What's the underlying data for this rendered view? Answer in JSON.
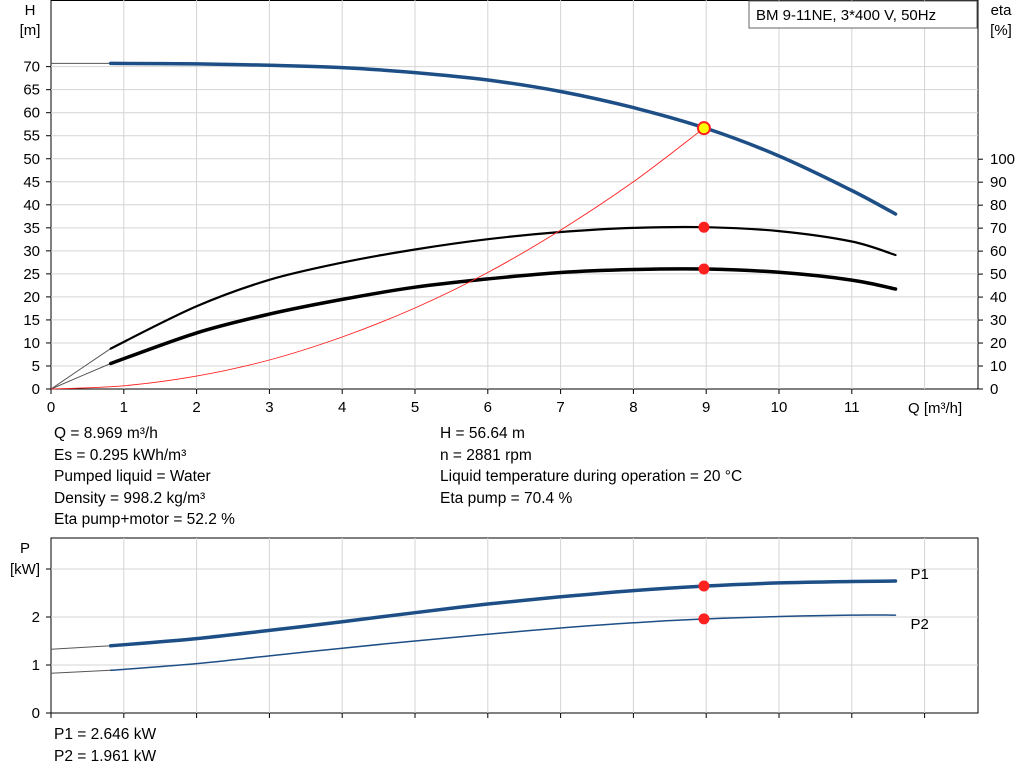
{
  "chart_data": [
    {
      "type": "line",
      "title": "BM 9-11NE, 3*400 V, 50Hz",
      "xlabel": "Q [m³/h]",
      "ylabel_left": [
        "H",
        "[m]"
      ],
      "ylabel_right": [
        "eta",
        "[%]"
      ],
      "xlim": [
        0,
        12.0
      ],
      "ylim_left": [
        0,
        75
      ],
      "ylim_right": [
        0,
        100
      ],
      "x_ticks": [
        "0",
        "1",
        "2",
        "3",
        "4",
        "5",
        "6",
        "7",
        "8",
        "9",
        "10",
        "11"
      ],
      "y_ticks_left": [
        "0",
        "5",
        "10",
        "15",
        "20",
        "25",
        "30",
        "35",
        "40",
        "45",
        "50",
        "55",
        "60",
        "65",
        "70"
      ],
      "y_ticks_right": [
        "0",
        "10",
        "20",
        "30",
        "40",
        "50",
        "60",
        "70",
        "80",
        "90",
        "100"
      ],
      "grid": true,
      "series": [
        {
          "axis": "left",
          "color": "#1d4f86",
          "width": 3.5,
          "x": [
            0.82,
            2,
            3,
            4,
            5,
            6,
            7,
            8,
            9,
            10,
            11,
            11.6
          ],
          "y": [
            70.7,
            70.6,
            70.3,
            69.8,
            68.7,
            67.1,
            64.6,
            61.1,
            56.6,
            50.6,
            43.1,
            38.0
          ],
          "extension": {
            "x": [
              0,
              0.82
            ],
            "y": [
              70.7,
              70.7
            ]
          }
        },
        {
          "axis": "right",
          "color": "#000000",
          "width": 2.2,
          "x": [
            0.82,
            2,
            3,
            4,
            5,
            6,
            7,
            8,
            9,
            10,
            11,
            11.6
          ],
          "y": [
            17.6,
            36.0,
            47.5,
            55.0,
            60.7,
            65.2,
            68.3,
            70.1,
            70.4,
            68.7,
            64.2,
            58.3
          ],
          "extension": {
            "x": [
              0,
              0.82
            ],
            "y": [
              0,
              17.6
            ]
          }
        },
        {
          "axis": "right",
          "color": "#000000",
          "width": 3.5,
          "x": [
            0.82,
            2,
            3,
            4,
            5,
            6,
            7,
            8,
            9,
            10,
            11,
            11.6
          ],
          "y": [
            11.1,
            24.4,
            32.6,
            39.0,
            44.3,
            47.9,
            50.7,
            52.0,
            52.2,
            50.8,
            47.4,
            43.5
          ],
          "extension": {
            "x": [
              0,
              0.82
            ],
            "y": [
              0,
              11.1
            ]
          }
        },
        {
          "axis": "left",
          "color": "#ff2020",
          "width": 0.9,
          "x": [
            0,
            1,
            2,
            3,
            4,
            5,
            6,
            7,
            8,
            8.969
          ],
          "y": [
            0,
            0.7,
            2.8,
            6.3,
            11.3,
            17.6,
            25.3,
            34.5,
            45.0,
            56.64
          ]
        }
      ],
      "markers": [
        {
          "axis": "left",
          "x": 8.969,
          "y": 56.64,
          "fill": "#ffff00",
          "stroke": "#ff2020"
        },
        {
          "axis": "right",
          "x": 8.969,
          "y": 70.4,
          "fill": "#ff2020",
          "stroke": "#ff2020"
        },
        {
          "axis": "right",
          "x": 8.969,
          "y": 52.2,
          "fill": "#ff2020",
          "stroke": "#ff2020"
        }
      ]
    },
    {
      "type": "line",
      "ylabel": [
        "P",
        "[kW]"
      ],
      "xlim": [
        0,
        12.0
      ],
      "ylim": [
        0,
        3.0
      ],
      "y_ticks": [
        "0",
        "1",
        "2"
      ],
      "grid": true,
      "series": [
        {
          "name": "P1",
          "color": "#1d4f86",
          "width": 3.5,
          "x": [
            0.82,
            2,
            3,
            4,
            5,
            6,
            7,
            8,
            9,
            10,
            11,
            11.6
          ],
          "y": [
            1.4,
            1.55,
            1.72,
            1.9,
            2.09,
            2.27,
            2.42,
            2.55,
            2.646,
            2.71,
            2.74,
            2.75
          ],
          "extension": {
            "x": [
              0,
              0.82
            ],
            "y": [
              1.33,
              1.4
            ]
          }
        },
        {
          "name": "P2",
          "color": "#1d4f86",
          "width": 1.5,
          "x": [
            0.82,
            2,
            3,
            4,
            5,
            6,
            7,
            8,
            9,
            10,
            11,
            11.6
          ],
          "y": [
            0.89,
            1.03,
            1.19,
            1.35,
            1.5,
            1.64,
            1.77,
            1.88,
            1.961,
            2.01,
            2.04,
            2.04
          ],
          "extension": {
            "x": [
              0,
              0.82
            ],
            "y": [
              0.83,
              0.89
            ]
          }
        }
      ],
      "markers": [
        {
          "x": 8.969,
          "y": 2.646,
          "fill": "#ff2020",
          "stroke": "#ff2020"
        },
        {
          "x": 8.969,
          "y": 1.961,
          "fill": "#ff2020",
          "stroke": "#ff2020"
        }
      ]
    }
  ],
  "info_left": [
    "Q = 8.969 m³/h",
    "Es = 0.295 kWh/m³",
    "Pumped liquid = Water",
    "Density = 998.2 kg/m³",
    "Eta pump+motor = 52.2 %"
  ],
  "info_right": [
    "H = 56.64 m",
    "n = 2881 rpm",
    "Liquid temperature during operation = 20 °C",
    "Eta pump = 70.4 %"
  ],
  "power_info": [
    "P1 = 2.646 kW",
    "P2 = 1.961 kW"
  ]
}
